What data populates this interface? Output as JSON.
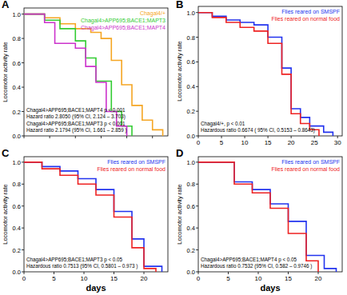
{
  "chart_data": [
    {
      "type": "line",
      "title": "A",
      "y_label": "Locomotor activity rate",
      "line_style": "step",
      "legend": "top-right",
      "tick_labels": "y",
      "xlim": [
        0,
        28
      ],
      "ylim": [
        0,
        1.05
      ],
      "xticks": [
        0,
        5,
        10,
        15,
        20,
        25
      ],
      "yticks": [
        {
          "value": 0,
          "label": "0.0"
        },
        {
          "value": 0.2,
          "label": "0.2"
        },
        {
          "value": 0.4,
          "label": "0.4"
        },
        {
          "value": 0.6,
          "label": "0.6"
        },
        {
          "value": 0.8,
          "label": "0.8"
        },
        {
          "value": 1,
          "label": "1.0"
        }
      ],
      "annotations": [
        "Chagal4>APP695;BACE1;MAPT4 p < 0.001",
        "Hazard ratio  2.8050 (95% CI, 2.124 – 3.703)",
        "Chagal4>APP695;BACE1;MAPT3 p < 0.001",
        "Hazard ratio  2.1794  (95% CI, 1.661 – 2.859 )"
      ],
      "series": [
        {
          "name": "Chagal4/+",
          "color": "#f5a623",
          "x": [
            0,
            4,
            7,
            10,
            13,
            15,
            17,
            19,
            21,
            23,
            25,
            27
          ],
          "values": [
            1.0,
            0.97,
            0.92,
            0.88,
            0.85,
            0.8,
            0.62,
            0.42,
            0.25,
            0.13,
            0.05,
            0.0
          ]
        },
        {
          "name": "Chagal4>APP695;BACE1;MAPT3",
          "color": "#33cc33",
          "x": [
            0,
            4,
            7,
            10,
            12,
            14,
            17,
            19,
            21
          ],
          "values": [
            1.0,
            0.95,
            0.88,
            0.78,
            0.64,
            0.45,
            0.2,
            0.08,
            0.0
          ]
        },
        {
          "name": "Chagal4>APP695;BACE1;MAPT4",
          "color": "#cc33cc",
          "x": [
            0,
            4,
            6,
            10,
            12,
            14,
            16,
            18,
            20
          ],
          "values": [
            1.0,
            0.93,
            0.76,
            0.72,
            0.57,
            0.44,
            0.2,
            0.08,
            0.0
          ]
        }
      ]
    },
    {
      "type": "line",
      "title": "B",
      "y_label": "Locomotor activity rate",
      "line_style": "step",
      "legend": "top-right",
      "xlim": [
        0,
        31
      ],
      "ylim": [
        0,
        1.05
      ],
      "xticks": [
        0,
        5,
        10,
        15,
        20,
        25,
        30
      ],
      "yticks": [
        {
          "value": 0,
          "label": "0.0"
        },
        {
          "value": 0.2,
          "label": "0.2"
        },
        {
          "value": 0.4,
          "label": "0.4"
        },
        {
          "value": 0.6,
          "label": "0.6"
        },
        {
          "value": 0.8,
          "label": "0.8"
        },
        {
          "value": 1,
          "label": "1.0"
        }
      ],
      "annotations": [
        "Chagal4/+, p < 0.01",
        "Hazardous ratio 0.6674 ( 95% CI, 0.5153 – 0.8643)"
      ],
      "series": [
        {
          "name": "Flies reared on SMSPF",
          "color": "#2233ee",
          "x": [
            0,
            3,
            6,
            9,
            12,
            15,
            18,
            20,
            22,
            24,
            27,
            29
          ],
          "values": [
            1.0,
            0.97,
            0.94,
            0.92,
            0.9,
            0.8,
            0.55,
            0.22,
            0.15,
            0.08,
            0.03,
            0.0
          ]
        },
        {
          "name": "Flies reared on normal food",
          "color": "#ee2222",
          "x": [
            0,
            3,
            6,
            9,
            12,
            15,
            18,
            20,
            22,
            24,
            26
          ],
          "values": [
            1.0,
            0.96,
            0.92,
            0.88,
            0.85,
            0.75,
            0.5,
            0.18,
            0.1,
            0.05,
            0.0
          ]
        }
      ]
    },
    {
      "type": "line",
      "title": "C",
      "x_label": "days",
      "y_label": "Locomotor activity rate",
      "line_style": "step",
      "legend": "top-right",
      "xlim": [
        0,
        24
      ],
      "ylim": [
        0,
        1.05
      ],
      "xticks": [
        0,
        5,
        10,
        15,
        20
      ],
      "yticks": [
        {
          "value": 0,
          "label": "0.0"
        },
        {
          "value": 0.2,
          "label": "0.2"
        },
        {
          "value": 0.4,
          "label": "0.4"
        },
        {
          "value": 0.6,
          "label": "0.6"
        },
        {
          "value": 0.8,
          "label": "0.8"
        },
        {
          "value": 1,
          "label": "1.0"
        }
      ],
      "annotations": [
        "Chagal4>APP695;BACE1;MAPT3 p < 0.05",
        "Hazardous ratio  0.7513 (95% CI, 0.5801 – 0.973 )"
      ],
      "series": [
        {
          "name": "Flies reared on SMSPF",
          "color": "#2233ee",
          "x": [
            0,
            3,
            6,
            9,
            12,
            15,
            18,
            20,
            23
          ],
          "values": [
            1.0,
            0.96,
            0.92,
            0.85,
            0.75,
            0.55,
            0.3,
            0.05,
            0.0
          ]
        },
        {
          "name": "Flies reared on normal food",
          "color": "#ee2222",
          "x": [
            0,
            3,
            6,
            9,
            12,
            15,
            18,
            20,
            22
          ],
          "values": [
            1.0,
            0.94,
            0.88,
            0.8,
            0.7,
            0.5,
            0.22,
            0.03,
            0.0
          ]
        }
      ]
    },
    {
      "type": "line",
      "title": "D",
      "x_label": "days",
      "y_label": "Locomotor activity rate",
      "line_style": "step",
      "legend": "top-right",
      "xlim": [
        0,
        24
      ],
      "ylim": [
        0,
        1.05
      ],
      "xticks": [
        0,
        5,
        10,
        15,
        20
      ],
      "yticks": [
        {
          "value": 0,
          "label": "0.0"
        },
        {
          "value": 0.2,
          "label": "0.2"
        },
        {
          "value": 0.4,
          "label": "0.4"
        },
        {
          "value": 0.6,
          "label": "0.6"
        },
        {
          "value": 0.8,
          "label": "0.8"
        },
        {
          "value": 1,
          "label": "1.0"
        }
      ],
      "annotations": [
        "Chagal4>APP695;BACE1;MAPT4 p < 0.05",
        "Hazardous ratio  0.7532 (95% CI, 0.582 – 0.9746 )"
      ],
      "series": [
        {
          "name": "Flies reared on SMSPF",
          "color": "#2233ee",
          "x": [
            0,
            3,
            6,
            9,
            12,
            15,
            18,
            21,
            23
          ],
          "values": [
            1.0,
            1.0,
            0.82,
            0.75,
            0.62,
            0.46,
            0.15,
            0.03,
            0.0
          ]
        },
        {
          "name": "Flies reared on normal food",
          "color": "#ee2222",
          "x": [
            0,
            3,
            6,
            9,
            12,
            15,
            18,
            20
          ],
          "values": [
            1.0,
            1.0,
            0.8,
            0.72,
            0.58,
            0.35,
            0.1,
            0.0
          ]
        }
      ]
    }
  ]
}
